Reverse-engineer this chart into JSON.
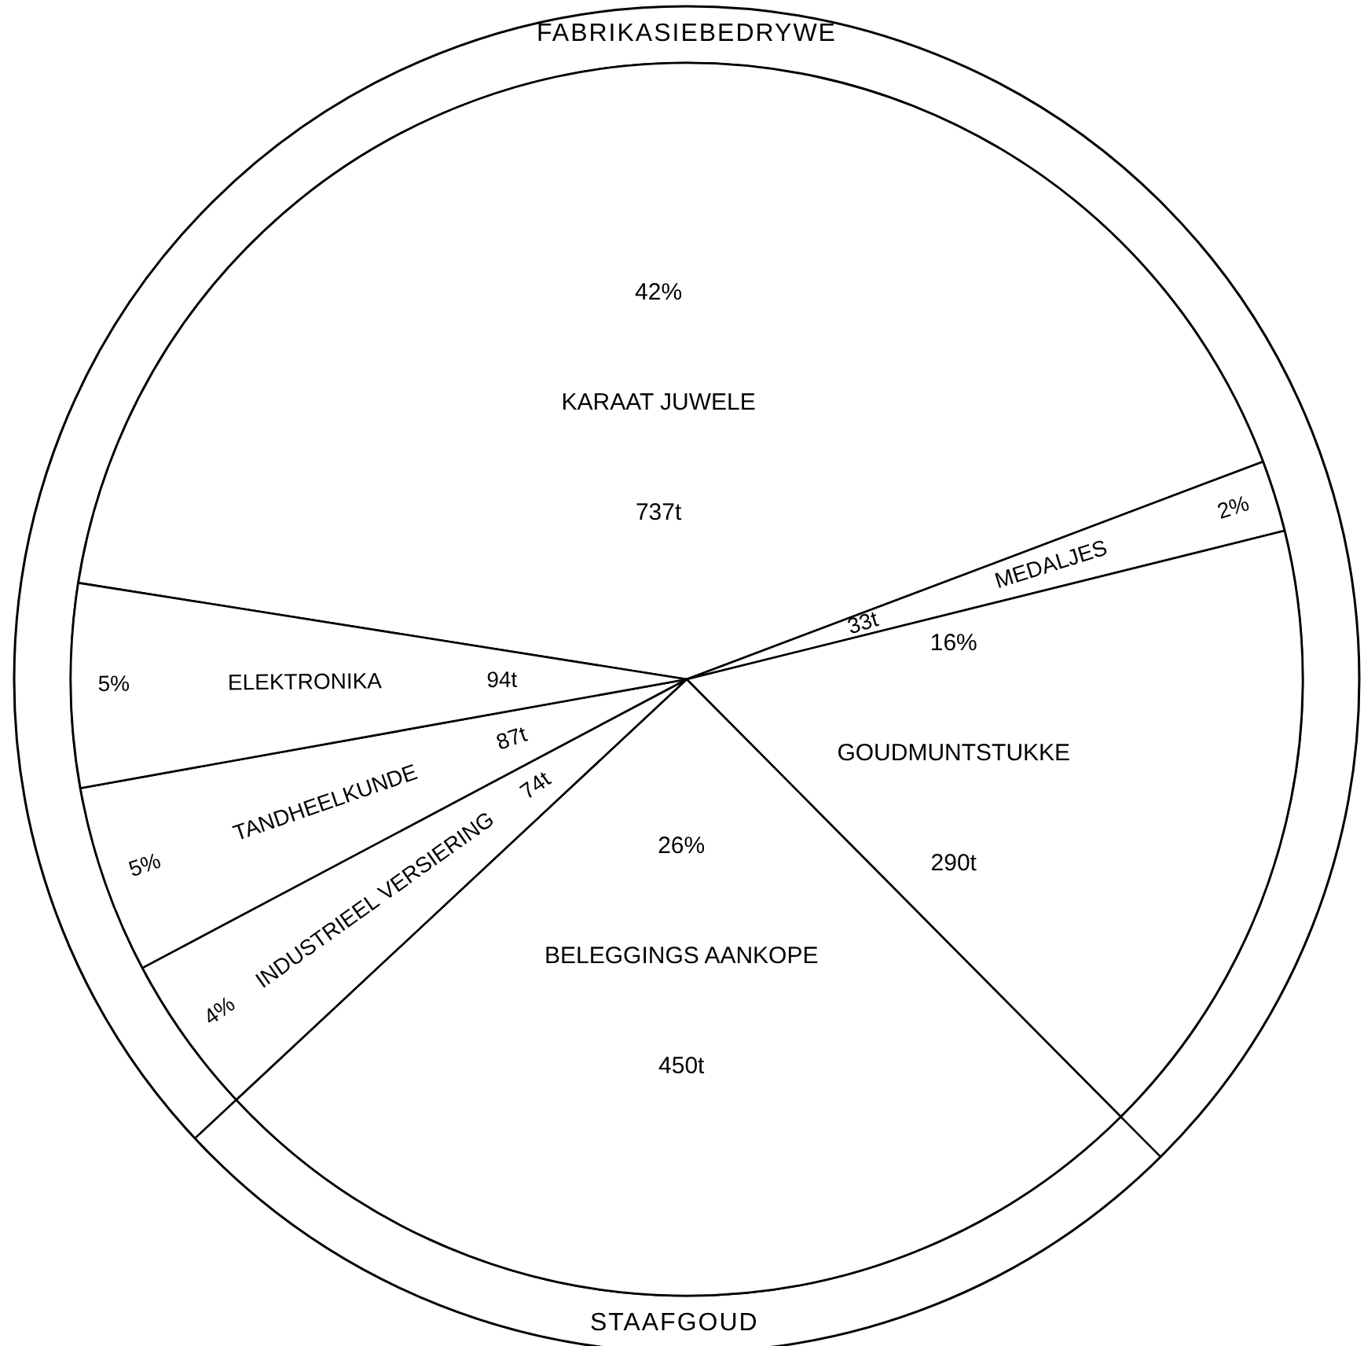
{
  "chart_data": {
    "type": "pie",
    "categories": [
      "KARAAT JUWELE",
      "MEDALJES",
      "GOUDMUNTSTUKKE",
      "BELEGGINGS AANKOPE",
      "INDUSTRIEEL VERSIERING",
      "TANDHEELKUNDE",
      "ELEKTRONIKA"
    ],
    "values": [
      737,
      33,
      290,
      450,
      74,
      87,
      94
    ],
    "value_labels": [
      "737t",
      "33t",
      "290t",
      "450t",
      "74t",
      "87t",
      "94t"
    ],
    "colors": [
      "#ffffff",
      "#ffffff",
      "#ffffff",
      "#ffffff",
      "#ffffff",
      "#ffffff",
      "#ffffff"
    ],
    "annotations": [
      "42%",
      "2%",
      "16%",
      "26%",
      "4%",
      "5%",
      "5%",
      "FABRIKASIEBEDRYWE",
      "STAAFGOUD"
    ]
  }
}
